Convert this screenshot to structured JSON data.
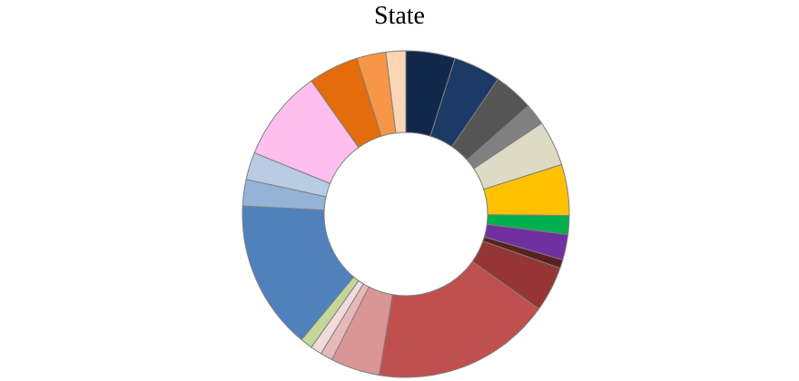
{
  "chart_data": {
    "type": "pie",
    "variant": "donut",
    "title": "State",
    "legend": "none",
    "slices": [
      {
        "value": 5.2,
        "color": "#12284a"
      },
      {
        "value": 5.0,
        "color": "#1b3a66"
      },
      {
        "value": 4.2,
        "color": "#555555"
      },
      {
        "value": 2.3,
        "color": "#808080"
      },
      {
        "value": 4.8,
        "color": "#dedac4"
      },
      {
        "value": 5.4,
        "color": "#ffc000"
      },
      {
        "value": 2.0,
        "color": "#00b050"
      },
      {
        "value": 2.7,
        "color": "#7030a0"
      },
      {
        "value": 0.9,
        "color": "#5a1f1f"
      },
      {
        "value": 4.8,
        "color": "#963634"
      },
      {
        "value": 19.0,
        "color": "#c0504d"
      },
      {
        "value": 5.2,
        "color": "#da9694"
      },
      {
        "value": 1.3,
        "color": "#e6b9b8"
      },
      {
        "value": 1.2,
        "color": "#f2dcdb"
      },
      {
        "value": 1.3,
        "color": "#c4d79b"
      },
      {
        "value": 15.8,
        "color": "#4f81bd"
      },
      {
        "value": 2.8,
        "color": "#95b3d7"
      },
      {
        "value": 2.9,
        "color": "#b8cce4"
      },
      {
        "value": 9.7,
        "color": "#ffbfee"
      },
      {
        "value": 5.3,
        "color": "#e46c0a"
      },
      {
        "value": 3.1,
        "color": "#f79646"
      },
      {
        "value": 2.1,
        "color": "#fcd5b4"
      }
    ]
  }
}
